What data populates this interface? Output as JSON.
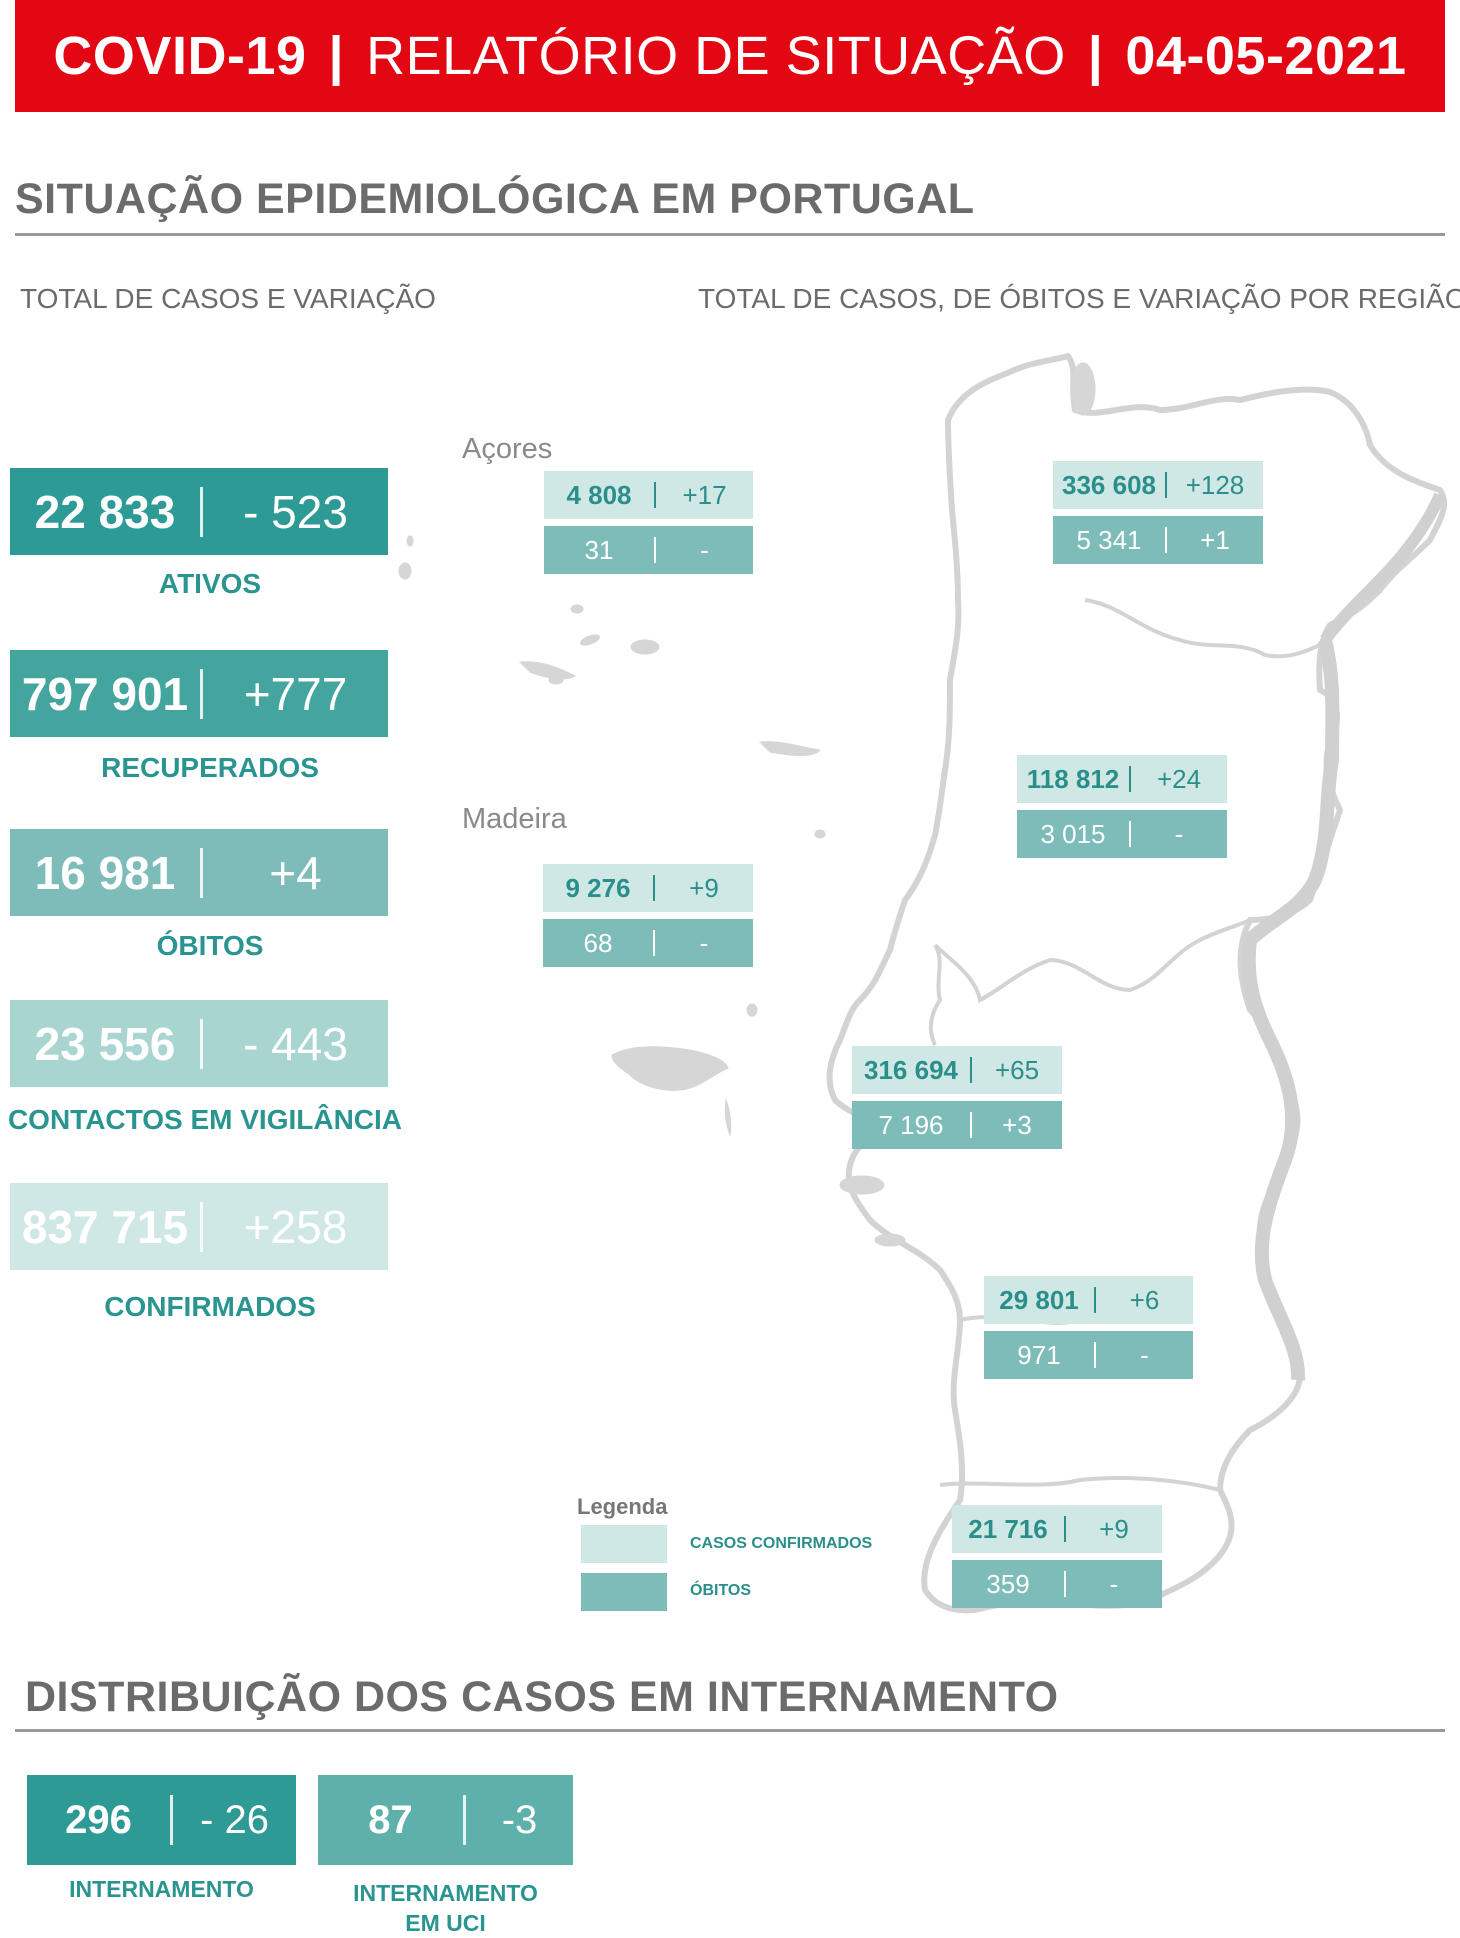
{
  "header": {
    "title_left": "COVID-19",
    "title_mid": "RELATÓRIO DE SITUAÇÃO",
    "title_date": "04-05-2021",
    "separator": "|"
  },
  "section1": {
    "title": "SITUAÇÃO EPIDEMIOLÓGICA EM PORTUGAL",
    "left_subtitle": "TOTAL DE CASOS E VARIAÇÃO",
    "right_subtitle": "TOTAL DE CASOS, DE ÓBITOS E VARIAÇÃO POR REGIÃO"
  },
  "stats": [
    {
      "value": "22 833",
      "variation": "- 523",
      "label": "ATIVOS",
      "color": "#2e9a95"
    },
    {
      "value": "797 901",
      "variation": "+777",
      "label": "RECUPERADOS",
      "color": "#44a59f"
    },
    {
      "value": "16 981",
      "variation": "+4",
      "label": "ÓBITOS",
      "color": "#7dbcb8"
    },
    {
      "value": "23 556",
      "variation": "- 443",
      "label": "CONTACTOS EM VIGILÂNCIA",
      "color": "#a9d5d1"
    },
    {
      "value": "837 715",
      "variation": "+258",
      "label": "CONFIRMADOS",
      "color": "#cfe8e5"
    }
  ],
  "map": {
    "azores_label": "Açores",
    "madeira_label": "Madeira",
    "regions": [
      {
        "cases": "4 808",
        "cases_var": "+17",
        "deaths": "31",
        "deaths_var": "-"
      },
      {
        "cases": "336 608",
        "cases_var": "+128",
        "deaths": "5 341",
        "deaths_var": "+1"
      },
      {
        "cases": "118 812",
        "cases_var": "+24",
        "deaths": "3 015",
        "deaths_var": "-"
      },
      {
        "cases": "9 276",
        "cases_var": "+9",
        "deaths": "68",
        "deaths_var": "-"
      },
      {
        "cases": "316 694",
        "cases_var": "+65",
        "deaths": "7 196",
        "deaths_var": "+3"
      },
      {
        "cases": "29 801",
        "cases_var": "+6",
        "deaths": "971",
        "deaths_var": "-"
      },
      {
        "cases": "21 716",
        "cases_var": "+9",
        "deaths": "359",
        "deaths_var": "-"
      }
    ],
    "legend": {
      "title": "Legenda",
      "confirmed": "CASOS CONFIRMADOS",
      "deaths": "ÓBITOS"
    }
  },
  "section2": {
    "title": "DISTRIBUIÇÃO DOS CASOS EM INTERNAMENTO",
    "items": [
      {
        "value": "296",
        "variation": "- 26",
        "label": "INTERNAMENTO",
        "color": "#2e9a95"
      },
      {
        "value": "87",
        "variation": "-3",
        "label_line1": "INTERNAMENTO",
        "label_line2": "EM UCI",
        "color": "#5eb0aa"
      }
    ]
  },
  "colors": {
    "header_red": "#e30613",
    "teal_label": "#2a9590",
    "confirmed_light": "#cfe8e5",
    "deaths_medium": "#7dbcb8",
    "map_grey": "#d6d6d6"
  }
}
